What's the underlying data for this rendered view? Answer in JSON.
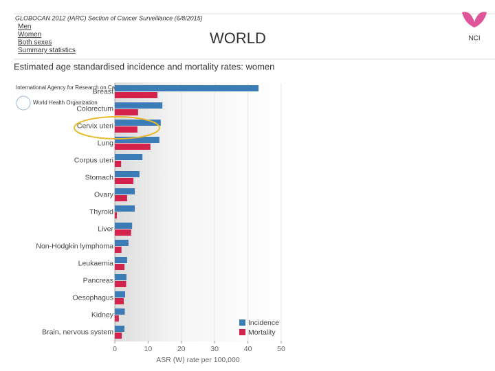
{
  "header": {
    "source": "GLOBOCAN 2012 (IARC) Section of Cancer Surveillance (6/8/2015)",
    "links": [
      "Men",
      "Women",
      "Both sexes",
      "Summary statistics"
    ],
    "region": "WORLD",
    "logo": "NCI",
    "agency": "International Agency for Research on Cancer",
    "who": "World Health Organization"
  },
  "chart_data": {
    "type": "hbar",
    "title": "Estimated age standardised incidence and mortality rates: women",
    "xlabel": "ASR (W) rate per 100,000",
    "categories": [
      "Breast",
      "Colorectum",
      "Cervix uteri",
      "Lung",
      "Corpus uteri",
      "Stomach",
      "Ovary",
      "Thyroid",
      "Liver",
      "Non-Hodgkin lymphoma",
      "Leukaemia",
      "Pancreas",
      "Oesophagus",
      "Kidney",
      "Brain, nervous system"
    ],
    "series": [
      {
        "name": "Incidence",
        "color": "#3b7bb6",
        "values": [
          43.2,
          14.3,
          13.8,
          13.4,
          8.3,
          7.4,
          6.0,
          6.0,
          5.2,
          4.1,
          3.7,
          3.5,
          3.1,
          3.0,
          2.9
        ]
      },
      {
        "name": "Mortality",
        "color": "#d3224b",
        "values": [
          12.8,
          7.0,
          6.8,
          10.7,
          1.9,
          5.6,
          3.7,
          0.6,
          4.9,
          2.0,
          2.9,
          3.4,
          2.7,
          1.2,
          2.1
        ]
      }
    ],
    "xlim": [
      0,
      50
    ],
    "xticks": [
      0,
      10,
      20,
      30,
      40,
      50
    ],
    "legend": "lower right"
  }
}
